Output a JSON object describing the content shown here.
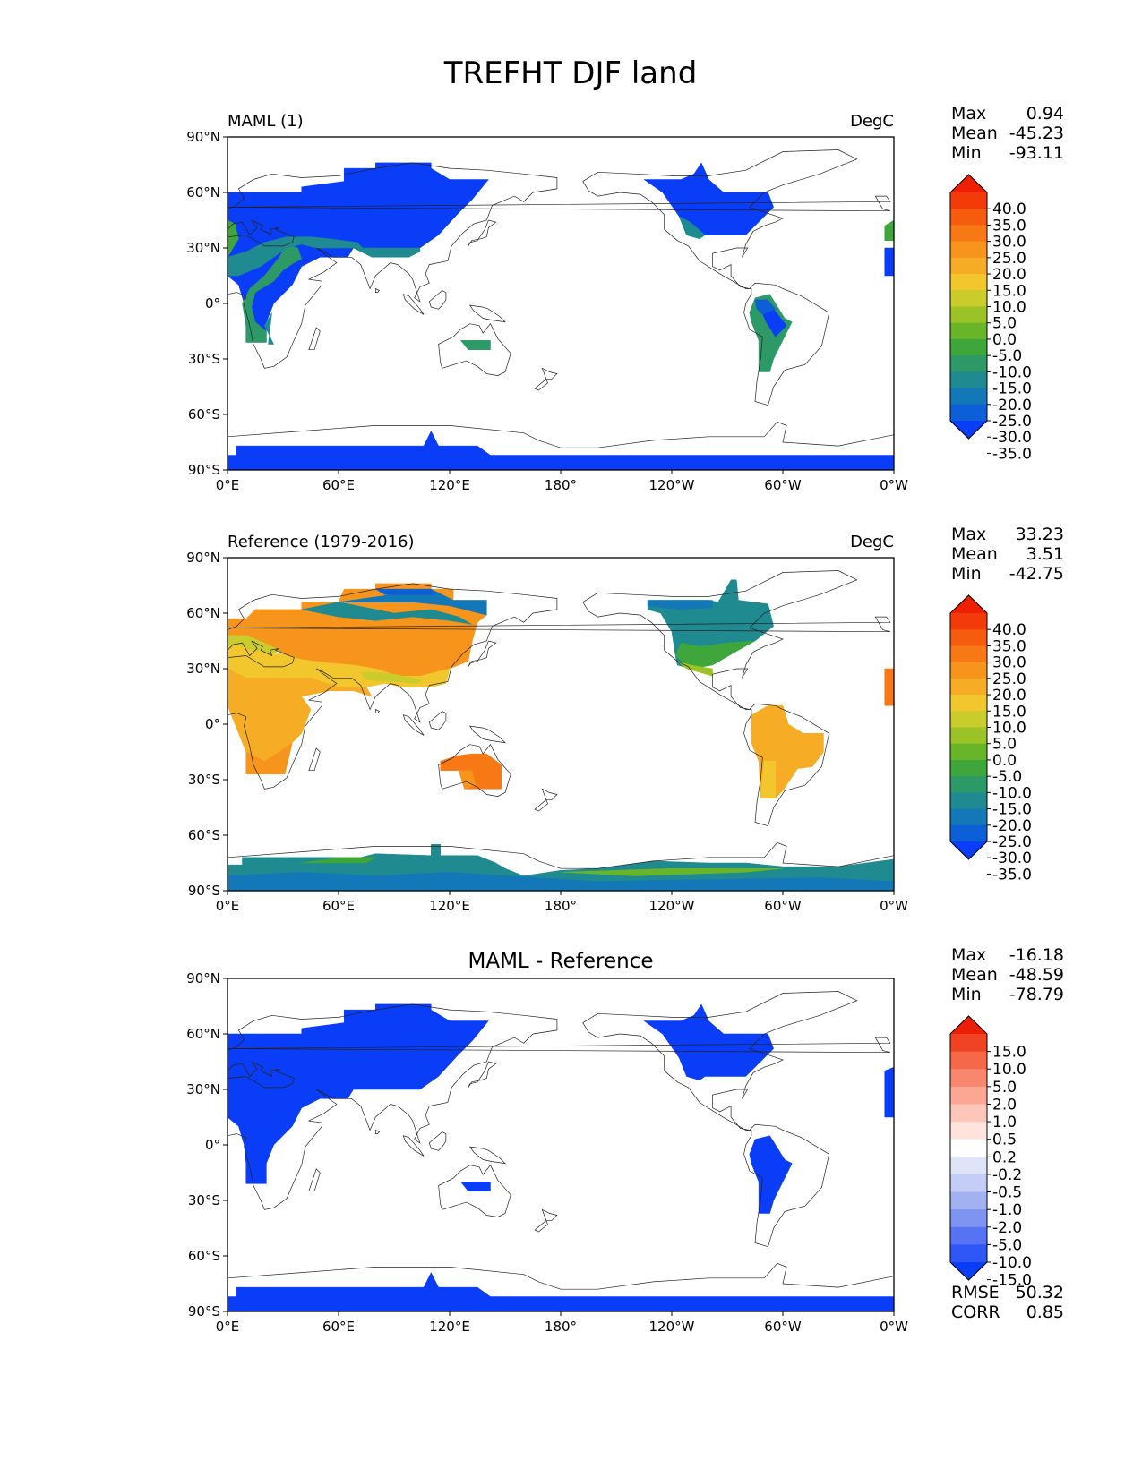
{
  "title": "TREFHT DJF land",
  "x_ticks": [
    "0°E",
    "60°E",
    "120°E",
    "180°",
    "120°W",
    "60°W",
    "0°W"
  ],
  "y_ticks": [
    "90°N",
    "60°N",
    "30°N",
    "0°",
    "30°S",
    "60°S",
    "90°S"
  ],
  "stat_labels": {
    "max": "Max",
    "mean": "Mean",
    "min": "Min",
    "rmse": "RMSE",
    "corr": "CORR"
  },
  "colors": {
    "abs_levels": [
      "#0a3df7",
      "#0c5fd6",
      "#1378b8",
      "#1f8a8f",
      "#2d9966",
      "#3ea63b",
      "#69b52a",
      "#9cc326",
      "#c9cc2a",
      "#f1c72d",
      "#f6ad25",
      "#f7941c",
      "#f77916",
      "#f55c0e",
      "#f23b08",
      "#ef1f03"
    ],
    "diff_levels": [
      "#0a3df7",
      "#2f57f5",
      "#5573f2",
      "#7d94f0",
      "#a2b2f1",
      "#c3cdf5",
      "#dfe4f9",
      "#ffffff",
      "#ffe3dc",
      "#fcc6b9",
      "#fba793",
      "#f8886d",
      "#f56848",
      "#f04324",
      "#ec1f06"
    ]
  },
  "panels": [
    {
      "id": "maml",
      "left_title": "MAML (1)",
      "center_title": "",
      "units": "DegC",
      "stats": {
        "max": "0.94",
        "mean": "-45.23",
        "min": "-93.11"
      },
      "colorbar": {
        "type": "abs",
        "ticks": [
          "40.0",
          "35.0",
          "30.0",
          "25.0",
          "20.0",
          "15.0",
          "10.0",
          "5.0",
          "0.0",
          "-5.0",
          "-10.0",
          "-15.0",
          "-20.0",
          "-25.0",
          "-30.0",
          "-35.0"
        ]
      }
    },
    {
      "id": "reference",
      "left_title": "Reference (1979-2016)",
      "center_title": "",
      "units": "DegC",
      "stats": {
        "max": "33.23",
        "mean": "3.51",
        "min": "-42.75"
      },
      "colorbar": {
        "type": "abs",
        "ticks": [
          "40.0",
          "35.0",
          "30.0",
          "25.0",
          "20.0",
          "15.0",
          "10.0",
          "5.0",
          "0.0",
          "-5.0",
          "-10.0",
          "-15.0",
          "-20.0",
          "-25.0",
          "-30.0",
          "-35.0"
        ]
      }
    },
    {
      "id": "difference",
      "left_title": "",
      "center_title": "MAML - Reference",
      "units": "",
      "stats": {
        "max": "-16.18",
        "mean": "-48.59",
        "min": "-78.79"
      },
      "extra_stats": {
        "rmse": "50.32",
        "corr": "0.85"
      },
      "colorbar": {
        "type": "diff",
        "ticks": [
          "15.0",
          "10.0",
          "5.0",
          "2.0",
          "1.0",
          "0.5",
          "0.2",
          "-0.2",
          "-0.5",
          "-1.0",
          "-2.0",
          "-5.0",
          "-10.0",
          "-15.0"
        ]
      }
    }
  ]
}
